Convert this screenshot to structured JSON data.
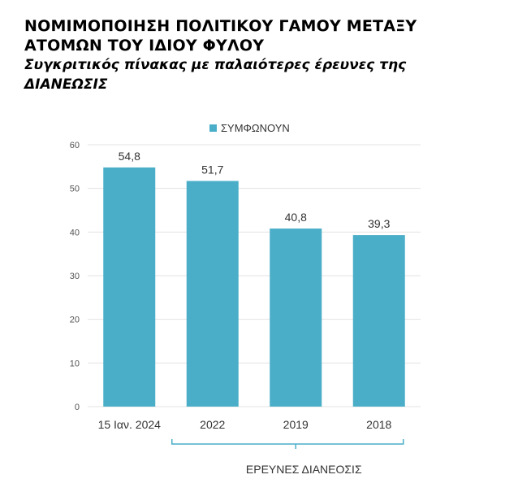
{
  "header": {
    "title_line1": "ΝΟΜΙΜΟΠΟΙΗΣΗ ΠΟΛΙΤΙΚΟΥ ΓΑΜΟΥ ΜΕΤΑΞΥ",
    "title_line2": "ΑΤΟΜΩΝ ΤΟΥ ΙΔΙΟΥ ΦΥΛΟΥ",
    "subtitle_line1": "Συγκριτικός πίνακας με παλαιότερες έρευνες της",
    "subtitle_line2": "ΔΙΑΝΕΩΣΙΣ"
  },
  "colors": {
    "bar": "#4aaec8",
    "axis_text": "#555555",
    "gridline": "#e3e3e3",
    "bracket": "#4aaec8"
  },
  "chart_data": {
    "type": "bar",
    "categories": [
      "15 Ιαν. 2024",
      "2022",
      "2019",
      "2018"
    ],
    "series": [
      {
        "name": "ΣΥΜΦΩΝΟΥΝ",
        "values": [
          54.8,
          51.7,
          40.8,
          39.3
        ]
      }
    ],
    "data_labels": [
      "54,8",
      "51,7",
      "40,8",
      "39,3"
    ],
    "y_ticks": [
      "0",
      "10",
      "20",
      "30",
      "40",
      "50",
      "60"
    ],
    "ylim": [
      0,
      60
    ],
    "grid": true,
    "legend_position": "top-center",
    "bracket_label": "ΕΡΕΥΝΕΣ ΔΙΑΝΕΟΣΙΣ"
  }
}
